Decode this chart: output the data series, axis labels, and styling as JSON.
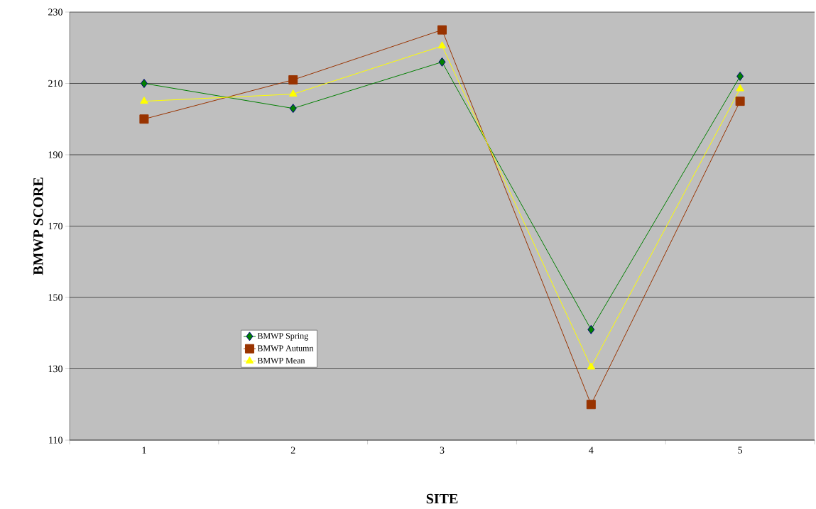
{
  "chart_data": {
    "type": "line",
    "xlabel": "SITE",
    "ylabel": "BMWP SCORE",
    "categories": [
      "1",
      "2",
      "3",
      "4",
      "5"
    ],
    "series": [
      {
        "name": "BMWP Spring",
        "color": "#008000",
        "marker": "diamond",
        "values": [
          210,
          203,
          216,
          141,
          212
        ]
      },
      {
        "name": "BMWP Autumn",
        "color": "#993300",
        "marker": "square",
        "values": [
          200,
          211,
          225,
          120,
          205
        ]
      },
      {
        "name": "BMWP Mean",
        "color": "#ffff00",
        "marker": "triangle",
        "values": [
          205,
          207,
          220.5,
          130.5,
          208.5
        ]
      }
    ],
    "ylim": [
      110,
      230
    ],
    "yticks": [
      110,
      130,
      150,
      170,
      190,
      210,
      230
    ],
    "grid": "y",
    "legend": "bottom left",
    "line_style": "solid"
  }
}
